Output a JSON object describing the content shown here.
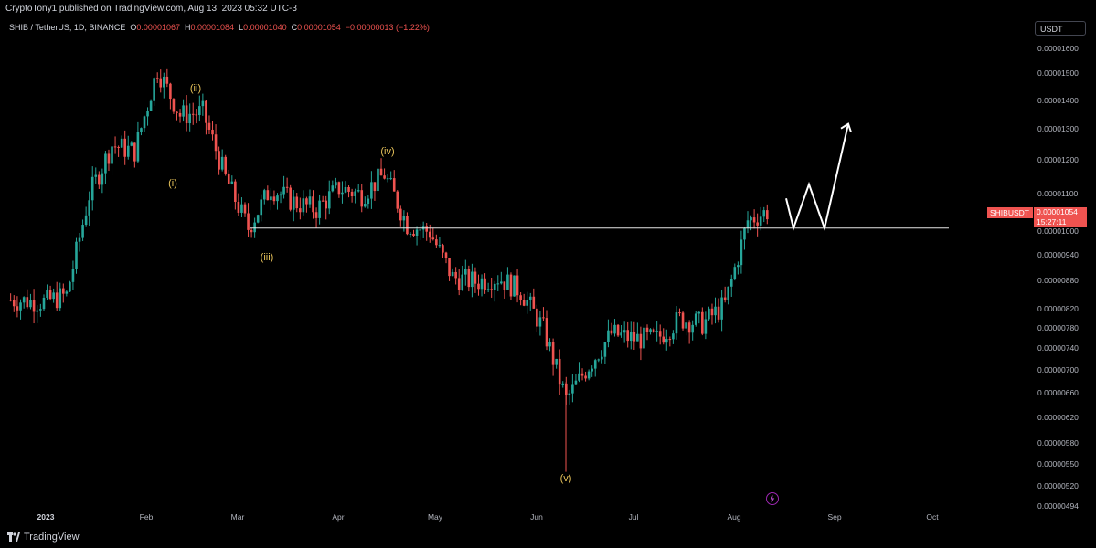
{
  "header": {
    "publisher_line": "CryptoTony1 published on TradingView.com, Aug 13, 2023 05:32 UTC-3"
  },
  "legend": {
    "symbol": "SHIB / TetherUS, 1D, BINANCE",
    "o_key": "O",
    "o_val": "0.00001067",
    "h_key": "H",
    "h_val": "0.00001084",
    "l_key": "L",
    "l_val": "0.00001040",
    "c_key": "C",
    "c_val": "0.00001054",
    "change": "−0.00000013 (−1.22%)"
  },
  "currency_button": "USDT",
  "last_price": {
    "ticker": "SHIBUSDT",
    "price": "0.00001054",
    "countdown": "15:27:11"
  },
  "footer": {
    "brand": "TradingView"
  },
  "colors": {
    "up": "#26a69a",
    "down": "#ef5350",
    "wave_label": "#e8c35a",
    "background": "#000000"
  },
  "chart_data": {
    "type": "candlestick",
    "symbol": "SHIBUSDT",
    "scale": "log",
    "y_ticks": [
      "0.00001600",
      "0.00001500",
      "0.00001400",
      "0.00001300",
      "0.00001200",
      "0.00001100",
      "0.00001000",
      "0.00000940",
      "0.00000880",
      "0.00000820",
      "0.00000780",
      "0.00000740",
      "0.00000700",
      "0.00000660",
      "0.00000620",
      "0.00000580",
      "0.00000550",
      "0.00000520",
      "0.00000494"
    ],
    "x_ticks": [
      "2023",
      "Feb",
      "Mar",
      "Apr",
      "May",
      "Jun",
      "Jul",
      "Aug",
      "Sep",
      "Oct"
    ],
    "ylim": [
      4.94e-06,
      1.66e-05
    ],
    "series": [
      {
        "x": "2023-01-01",
        "close": 8.36e-06
      },
      {
        "x": "2023-01-08",
        "close": 8.5e-06
      },
      {
        "x": "2023-01-15",
        "close": 1.1e-05
      },
      {
        "x": "2023-01-22",
        "close": 1.25e-05
      },
      {
        "x": "2023-01-29",
        "close": 1.23e-05
      },
      {
        "x": "2023-02-05",
        "close": 1.52e-05
      },
      {
        "x": "2023-02-12",
        "close": 1.35e-05
      },
      {
        "x": "2023-02-19",
        "close": 1.36e-05
      },
      {
        "x": "2023-02-26",
        "close": 1.15e-05
      },
      {
        "x": "2023-03-05",
        "close": 1.01e-05
      },
      {
        "x": "2023-03-12",
        "close": 1.12e-05
      },
      {
        "x": "2023-03-19",
        "close": 1.08e-05
      },
      {
        "x": "2023-03-26",
        "close": 1.06e-05
      },
      {
        "x": "2023-04-02",
        "close": 1.12e-05
      },
      {
        "x": "2023-04-09",
        "close": 1.1e-05
      },
      {
        "x": "2023-04-16",
        "close": 1.16e-05
      },
      {
        "x": "2023-04-23",
        "close": 1.02e-05
      },
      {
        "x": "2023-04-30",
        "close": 1e-05
      },
      {
        "x": "2023-05-07",
        "close": 8.9e-06
      },
      {
        "x": "2023-05-14",
        "close": 8.8e-06
      },
      {
        "x": "2023-05-21",
        "close": 8.9e-06
      },
      {
        "x": "2023-05-28",
        "close": 8.6e-06
      },
      {
        "x": "2023-06-04",
        "close": 7.8e-06
      },
      {
        "x": "2023-06-11",
        "close": 6.5e-06
      },
      {
        "x": "2023-06-18",
        "close": 7.1e-06
      },
      {
        "x": "2023-06-25",
        "close": 7.7e-06
      },
      {
        "x": "2023-07-02",
        "close": 7.6e-06
      },
      {
        "x": "2023-07-09",
        "close": 7.6e-06
      },
      {
        "x": "2023-07-16",
        "close": 8e-06
      },
      {
        "x": "2023-07-23",
        "close": 7.9e-06
      },
      {
        "x": "2023-07-30",
        "close": 8.3e-06
      },
      {
        "x": "2023-08-06",
        "close": 1.03e-05
      },
      {
        "x": "2023-08-12",
        "close": 1.054e-05
      }
    ],
    "annotations": [
      {
        "label": "(i)",
        "x": "2023-02-02",
        "price": 1.22e-05
      },
      {
        "label": "(ii)",
        "x": "2023-02-16",
        "price": 1.5e-05
      },
      {
        "label": "(iii)",
        "x": "2023-03-10",
        "price": 9.8e-06
      },
      {
        "label": "(iv)",
        "x": "2023-04-16",
        "price": 1.24e-05
      },
      {
        "label": "(v)",
        "x": "2023-06-10",
        "price": 5.3e-06
      }
    ],
    "support_line": 1.01e-05,
    "projection": [
      1.09e-05,
      1.01e-05,
      1.13e-05,
      1.01e-05,
      1.32e-05
    ]
  }
}
